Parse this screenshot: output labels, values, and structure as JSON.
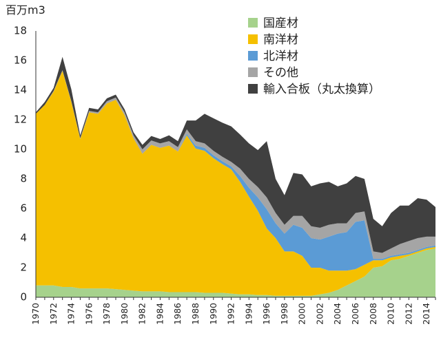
{
  "chart_data": {
    "type": "area",
    "stacked": true,
    "title": "",
    "ylabel": "百万m3",
    "xlabel": "",
    "ylim": [
      0,
      18
    ],
    "yticks": [
      0,
      2,
      4,
      6,
      8,
      10,
      12,
      14,
      16,
      18
    ],
    "grid": false,
    "legend_position": "top-right",
    "x": [
      1970,
      1971,
      1972,
      1973,
      1974,
      1975,
      1976,
      1977,
      1978,
      1979,
      1980,
      1981,
      1982,
      1983,
      1984,
      1985,
      1986,
      1987,
      1988,
      1989,
      1990,
      1991,
      1992,
      1993,
      1994,
      1995,
      1996,
      1997,
      1998,
      1999,
      2000,
      2001,
      2002,
      2003,
      2004,
      2005,
      2006,
      2007,
      2008,
      2009,
      2010,
      2011,
      2012,
      2013,
      2014,
      2015
    ],
    "xticks": [
      1970,
      1972,
      1974,
      1976,
      1978,
      1980,
      1982,
      1984,
      1986,
      1988,
      1990,
      1992,
      1994,
      1996,
      1998,
      2000,
      2002,
      2004,
      2006,
      2008,
      2010,
      2012,
      2014
    ],
    "series": [
      {
        "name": "国産材",
        "color": "#a6d28c",
        "values": [
          0.8,
          0.8,
          0.8,
          0.7,
          0.7,
          0.6,
          0.6,
          0.6,
          0.6,
          0.55,
          0.5,
          0.45,
          0.4,
          0.4,
          0.4,
          0.35,
          0.35,
          0.35,
          0.35,
          0.3,
          0.3,
          0.3,
          0.25,
          0.2,
          0.2,
          0.15,
          0.15,
          0.1,
          0.1,
          0.1,
          0.1,
          0.1,
          0.2,
          0.3,
          0.5,
          0.8,
          1.1,
          1.4,
          2.0,
          2.1,
          2.5,
          2.6,
          2.8,
          3.0,
          3.2,
          3.3
        ]
      },
      {
        "name": "南洋材",
        "color": "#f5c000",
        "values": [
          11.6,
          12.2,
          13.1,
          14.6,
          12.5,
          10.1,
          11.9,
          11.8,
          12.5,
          12.8,
          11.8,
          10.3,
          9.3,
          9.9,
          9.7,
          9.9,
          9.5,
          10.6,
          9.7,
          9.6,
          9.1,
          8.7,
          8.4,
          7.6,
          6.6,
          5.7,
          4.5,
          3.9,
          3.0,
          3.0,
          2.7,
          1.9,
          1.8,
          1.5,
          1.3,
          1.0,
          0.8,
          0.8,
          0.5,
          0.4,
          0.2,
          0.2,
          0.1,
          0.1,
          0.1,
          0.1
        ]
      },
      {
        "name": "北洋材",
        "color": "#5b9bd5",
        "values": [
          0,
          0,
          0,
          0,
          0,
          0,
          0,
          0,
          0,
          0,
          0,
          0,
          0,
          0,
          0,
          0,
          0,
          0.1,
          0.2,
          0.2,
          0.2,
          0.2,
          0.2,
          0.4,
          0.6,
          0.9,
          1.3,
          1.0,
          1.2,
          1.8,
          1.9,
          2.0,
          1.9,
          2.3,
          2.5,
          2.6,
          3.2,
          3.0,
          0.1,
          0.1,
          0.1,
          0.1,
          0.1,
          0.1,
          0.1,
          0.1
        ]
      },
      {
        "name": "その他",
        "color": "#a5a5a5",
        "values": [
          0,
          0,
          0.05,
          0.05,
          0.05,
          0.05,
          0.1,
          0.1,
          0.15,
          0.15,
          0.2,
          0.2,
          0.3,
          0.3,
          0.3,
          0.3,
          0.3,
          0.3,
          0.3,
          0.3,
          0.3,
          0.3,
          0.3,
          0.5,
          0.6,
          0.7,
          0.8,
          0.7,
          0.6,
          0.6,
          0.8,
          0.8,
          0.8,
          0.8,
          0.7,
          0.6,
          0.6,
          0.6,
          0.5,
          0.4,
          0.5,
          0.7,
          0.8,
          0.8,
          0.7,
          0.6
        ]
      },
      {
        "name": "輸入合板（丸太換算）",
        "color": "#404040",
        "values": [
          0.1,
          0.2,
          0.2,
          0.9,
          0.8,
          0.2,
          0.2,
          0.2,
          0.2,
          0.2,
          0.2,
          0.2,
          0.3,
          0.3,
          0.3,
          0.4,
          0.4,
          0.6,
          1.4,
          2.0,
          2.2,
          2.3,
          2.4,
          2.3,
          2.4,
          2.5,
          3.8,
          2.3,
          2.0,
          2.9,
          2.8,
          2.7,
          3.0,
          2.9,
          2.5,
          2.7,
          2.5,
          2.2,
          2.2,
          1.8,
          2.4,
          2.6,
          2.4,
          2.7,
          2.5,
          2.0
        ]
      }
    ]
  }
}
